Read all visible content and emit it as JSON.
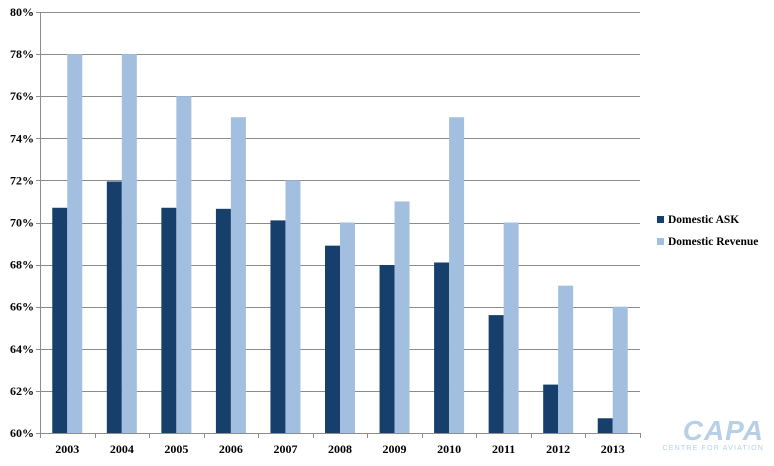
{
  "chart_data": {
    "type": "bar",
    "categories": [
      "2003",
      "2004",
      "2005",
      "2006",
      "2007",
      "2008",
      "2009",
      "2010",
      "2011",
      "2012",
      "2013"
    ],
    "series": [
      {
        "name": "Domestic ASK",
        "color": "#173f6b",
        "values": [
          70.7,
          71.95,
          70.7,
          70.65,
          70.1,
          68.9,
          67.98,
          68.1,
          65.6,
          62.3,
          60.7
        ]
      },
      {
        "name": "Domestic Revenue",
        "color": "#a3bfdf",
        "values": [
          78,
          78,
          76,
          75,
          72,
          70,
          71,
          75,
          70,
          67,
          66
        ]
      }
    ],
    "ylim": [
      60,
      80
    ],
    "yticks": [
      60,
      62,
      64,
      66,
      68,
      70,
      72,
      74,
      76,
      78,
      80
    ],
    "ytick_labels": [
      "60%",
      "62%",
      "64%",
      "66%",
      "68%",
      "70%",
      "72%",
      "74%",
      "76%",
      "78%",
      "80%"
    ],
    "grid": true,
    "legend_position": "right",
    "title": "",
    "xlabel": "",
    "ylabel": ""
  },
  "logo": {
    "name": "CAPA",
    "tagline": "CENTRE FOR AVIATION",
    "color": "#b8d0e6"
  }
}
